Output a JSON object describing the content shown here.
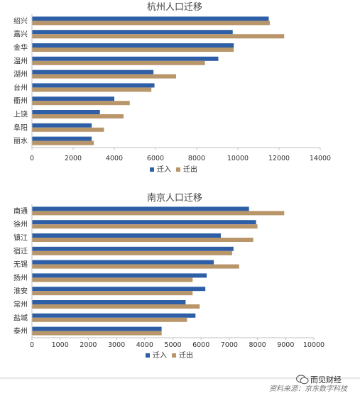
{
  "colors": {
    "in": "#2e5fa6",
    "out": "#b8966a",
    "axis": "#bfbfbf"
  },
  "chart_data": [
    {
      "type": "bar",
      "orientation": "horizontal",
      "title": "杭州人口迁移",
      "categories": [
        "绍兴",
        "嘉兴",
        "金华",
        "温州",
        "湖州",
        "台州",
        "衢州",
        "上饶",
        "阜阳",
        "丽水"
      ],
      "series": [
        {
          "name": "迁入",
          "values": [
            11500,
            9750,
            9800,
            9050,
            5900,
            5950,
            4000,
            3300,
            2900,
            2900
          ]
        },
        {
          "name": "迁出",
          "values": [
            11550,
            12250,
            9800,
            8400,
            7000,
            5800,
            4750,
            4450,
            3500,
            3000
          ]
        }
      ],
      "xlim": [
        0,
        14000
      ],
      "ticks": [
        0,
        2000,
        4000,
        6000,
        8000,
        10000,
        12000,
        14000
      ],
      "legend": "bottom"
    },
    {
      "type": "bar",
      "orientation": "horizontal",
      "title": "南京人口迁移",
      "categories": [
        "南通",
        "徐州",
        "镇江",
        "宿迁",
        "无锡",
        "扬州",
        "淮安",
        "常州",
        "盐城",
        "泰州"
      ],
      "series": [
        {
          "name": "迁入",
          "values": [
            7700,
            7950,
            6700,
            7150,
            6450,
            6200,
            6150,
            5450,
            5800,
            4600
          ]
        },
        {
          "name": "迁出",
          "values": [
            8950,
            8000,
            7850,
            7100,
            7350,
            5700,
            5700,
            5950,
            5500,
            4600
          ]
        }
      ],
      "xlim": [
        0,
        10000
      ],
      "ticks": [
        0,
        1000,
        2000,
        3000,
        4000,
        5000,
        6000,
        7000,
        8000,
        9000,
        10000
      ],
      "legend": "bottom"
    }
  ],
  "footer": {
    "source": "资料来源：京东数字科技",
    "brand": "而见财经"
  }
}
